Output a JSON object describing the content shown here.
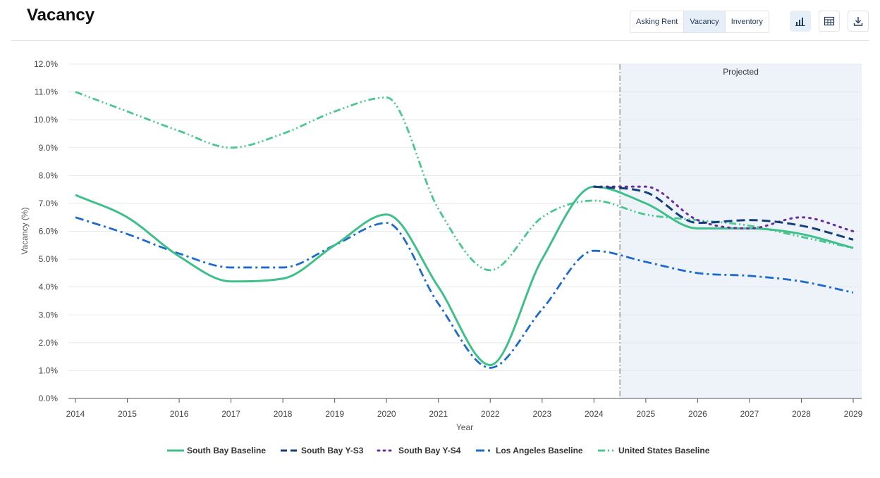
{
  "header": {
    "title": "Vacancy",
    "tabs": [
      {
        "label": "Asking Rent",
        "active": false
      },
      {
        "label": "Vacancy",
        "active": true
      },
      {
        "label": "Inventory",
        "active": false
      }
    ],
    "icons": [
      "bar-chart-icon",
      "table-icon",
      "download-icon"
    ]
  },
  "colors": {
    "accent": "#1f3a5c",
    "south_bay_baseline": "#3fc08a",
    "south_bay_y_s3": "#153f7c",
    "south_bay_y_s4": "#6a2d9e",
    "los_angeles_baseline": "#1e6bd0",
    "united_states_baseline": "#4ac78f",
    "projected_band": "#eef3f9"
  },
  "chart_data": {
    "type": "line",
    "title": "",
    "xlabel": "Year",
    "ylabel": "Vacancy (%)",
    "xlim": [
      2014,
      2029
    ],
    "ylim": [
      0,
      12
    ],
    "y_ticks": [
      "0.0%",
      "1.0%",
      "2.0%",
      "3.0%",
      "4.0%",
      "5.0%",
      "6.0%",
      "7.0%",
      "8.0%",
      "9.0%",
      "10.0%",
      "11.0%",
      "12.0%"
    ],
    "x_ticks": [
      "2014",
      "2015",
      "2016",
      "2017",
      "2018",
      "2019",
      "2020",
      "2021",
      "2022",
      "2023",
      "2024",
      "2025",
      "2026",
      "2027",
      "2028",
      "2029"
    ],
    "grid": true,
    "legend_position": "bottom",
    "projected": {
      "label": "Projected",
      "start": 2024.5,
      "end": 2029.15
    },
    "series": [
      {
        "name": "South Bay Baseline",
        "style": "solid",
        "x": [
          2014,
          2015,
          2016,
          2017,
          2018,
          2019,
          2020,
          2021,
          2022,
          2023,
          2024,
          2025,
          2026,
          2027,
          2028,
          2029
        ],
        "y": [
          7.3,
          6.5,
          5.1,
          4.2,
          4.3,
          5.5,
          6.6,
          4.0,
          1.2,
          5.0,
          7.6,
          7.0,
          6.1,
          6.1,
          5.9,
          5.4
        ]
      },
      {
        "name": "South Bay Y-S3",
        "style": "dashed",
        "x": [
          2024,
          2025,
          2026,
          2027,
          2028,
          2029
        ],
        "y": [
          7.6,
          7.4,
          6.3,
          6.4,
          6.2,
          5.7
        ]
      },
      {
        "name": "South Bay Y-S4",
        "style": "dotted",
        "x": [
          2024,
          2025,
          2026,
          2027,
          2028,
          2029
        ],
        "y": [
          7.6,
          7.6,
          6.4,
          6.1,
          6.5,
          6.0
        ]
      },
      {
        "name": "Los Angeles Baseline",
        "style": "dashdot",
        "x": [
          2014,
          2015,
          2016,
          2017,
          2018,
          2019,
          2020,
          2021,
          2022,
          2023,
          2024,
          2025,
          2026,
          2027,
          2028,
          2029
        ],
        "y": [
          6.5,
          5.9,
          5.2,
          4.7,
          4.7,
          5.5,
          6.3,
          3.4,
          1.1,
          3.2,
          5.3,
          4.9,
          4.5,
          4.4,
          4.2,
          3.8
        ]
      },
      {
        "name": "United States Baseline",
        "style": "dashdotdot",
        "x": [
          2014,
          2015,
          2016,
          2017,
          2018,
          2019,
          2020,
          2021,
          2022,
          2023,
          2024,
          2025,
          2026,
          2027,
          2028,
          2029
        ],
        "y": [
          11.0,
          10.3,
          9.6,
          9.0,
          9.5,
          10.3,
          10.8,
          6.8,
          4.6,
          6.5,
          7.1,
          6.6,
          6.4,
          6.2,
          5.8,
          5.4
        ]
      }
    ]
  }
}
